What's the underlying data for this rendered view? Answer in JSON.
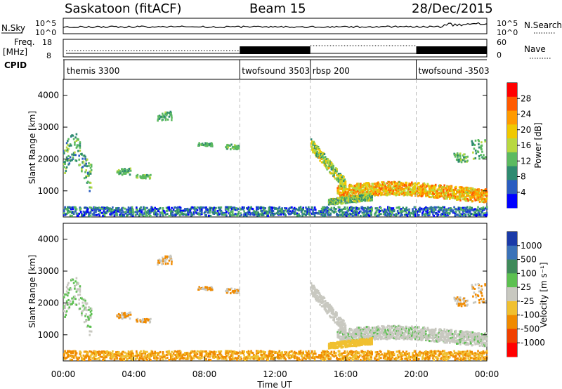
{
  "header": {
    "station": "Saskatoon (fitACF)",
    "beam": "Beam 15",
    "date": "28/Dec/2015"
  },
  "status_panels": {
    "nsky_label": "N.Sky",
    "nsearch_label": "N.Search",
    "freq_label": "Freq.",
    "freq_unit": "[MHz]",
    "nave_label": "Nave",
    "cpid_label": "CPID",
    "noise_ticks_left": [
      "10^5",
      "10^0"
    ],
    "noise_ticks_right": [
      "10^5",
      "10^0"
    ],
    "freq_ticks_left": [
      "18",
      "8"
    ],
    "nave_ticks_right": [
      "60",
      "0"
    ]
  },
  "cpid_segments": [
    {
      "label": "themis 3300",
      "start_ut": 0.0
    },
    {
      "label": "twofsound 3503",
      "start_ut": 10.0
    },
    {
      "label": "rbsp 200",
      "start_ut": 14.0
    },
    {
      "label": "twofsound -3503",
      "start_ut": 20.0
    }
  ],
  "chart_data": [
    {
      "type": "heatmap",
      "panel": "power",
      "ylabel": "Slant Range [km]",
      "ylim": [
        180,
        4500
      ],
      "yticks": [
        "1000",
        "2000",
        "3000",
        "4000"
      ],
      "xlim": [
        0,
        24
      ],
      "mode_boundaries_ut": [
        10,
        14,
        20
      ],
      "colorbar_label": "Power [dB]",
      "colorbar_ticks": [
        "28",
        "24",
        "20",
        "16",
        "12",
        "8",
        "4"
      ],
      "colorbar_colors": [
        "#ff0000",
        "#ff5a00",
        "#ff9a00",
        "#f0c800",
        "#b8d840",
        "#5cba60",
        "#2e8a70",
        "#2a5cc0",
        "#0000ff"
      ],
      "echo_regions": [
        {
          "region": "west-slope band",
          "ut": [
            14.0,
            16.0
          ],
          "range_km": [
            2500,
            1150
          ],
          "level_db": 14
        },
        {
          "region": "main band",
          "ut": [
            15.5,
            24.0
          ],
          "range_km": [
            750,
            1300
          ],
          "level_db": 20
        },
        {
          "region": "early patches",
          "ut": [
            0.0,
            1.6
          ],
          "range_km": [
            1300,
            2600
          ],
          "level_db": 10
        },
        {
          "region": "near-range clutter",
          "ut": [
            0.0,
            24.0
          ],
          "range_km": [
            200,
            500
          ],
          "level_db": 6
        }
      ]
    },
    {
      "type": "heatmap",
      "panel": "velocity",
      "ylabel": "Slant Range [km]",
      "xlabel": "Time UT",
      "ylim": [
        180,
        4500
      ],
      "yticks": [
        "1000",
        "2000",
        "3000",
        "4000"
      ],
      "xlim": [
        0,
        24
      ],
      "xticks": [
        "00:00",
        "04:00",
        "08:00",
        "12:00",
        "16:00",
        "20:00",
        "00:00"
      ],
      "mode_boundaries_ut": [
        10,
        14,
        20
      ],
      "colorbar_label": "Velocity [m s⁻¹]",
      "colorbar_ticks": [
        "1000",
        "500",
        "100",
        "25",
        "-25",
        "-100",
        "-500",
        "-1000"
      ],
      "colorbar_colors": [
        "#1a3aa8",
        "#3a72b8",
        "#3f8a5a",
        "#5cc050",
        "#c8c8c0",
        "#f0c030",
        "#f08a00",
        "#f04000",
        "#ff0000"
      ],
      "echo_regions": [
        {
          "region": "ground scatter band",
          "ut": [
            14.0,
            24.0
          ],
          "range_km": [
            900,
            1300
          ],
          "velocity_ms": 0
        },
        {
          "region": "near-range flow",
          "ut": [
            6.0,
            14.0
          ],
          "range_km": [
            300,
            800
          ],
          "velocity_ms": -100
        },
        {
          "region": "early patches",
          "ut": [
            3.5,
            5.0
          ],
          "range_km": [
            1300,
            1500
          ],
          "velocity_ms": -300
        }
      ]
    }
  ]
}
